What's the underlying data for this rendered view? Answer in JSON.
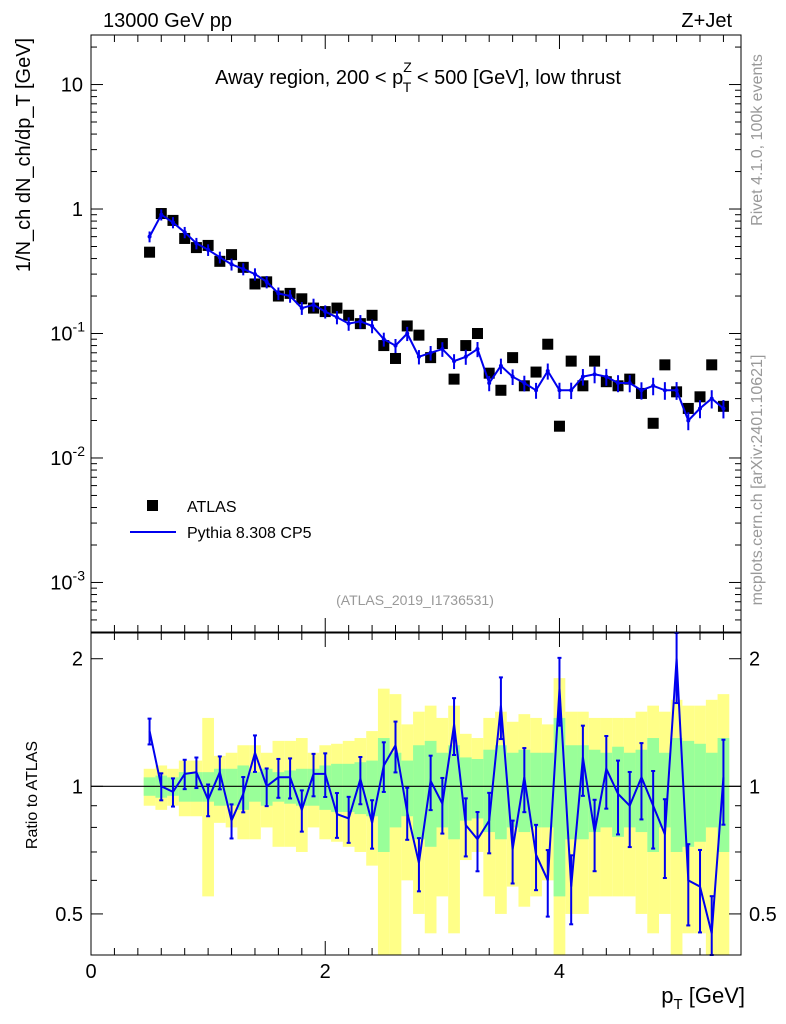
{
  "header": {
    "energy": "13000 GeV pp",
    "process": "Z+Jet",
    "caption": "Away region, 200 < p",
    "caption_sup": "Z",
    "caption_sub": "T",
    "caption_tail": " < 500 [GeV], low thrust",
    "analysis_id": "(ATLAS_2019_I1736531)",
    "side_rivet": "Rivet 4.1.0,  100k events",
    "side_site": "mcplots.cern.ch [arXiv:2401.10621]"
  },
  "axes": {
    "main_ylabel": "1/N_ch dN_ch/dp_T [GeV]",
    "ratio_ylabel": "Ratio to ATLAS",
    "xlabel": "p_T [GeV]"
  },
  "legend": {
    "data_label": "ATLAS",
    "mc_label": "Pythia 8.308 CP5"
  },
  "colors": {
    "mc": "#0000ee",
    "data": "#000000",
    "band_outer": "#ffff88",
    "band_inner": "#99ff99"
  },
  "chart_data": [
    {
      "type": "scatter",
      "title": "Away region, 200 < pT^Z < 500 [GeV], low thrust",
      "xlabel": "p_T [GeV]",
      "ylabel": "1/N_ch dN_ch/dp_T [GeV]",
      "yscale": "log",
      "xlim": [
        0,
        5.55
      ],
      "ylim": [
        0.0004,
        25
      ],
      "x_ticks": [
        "0",
        "2",
        "4"
      ],
      "y_ticks": [
        "10",
        "1",
        "10^-1",
        "10^-2",
        "10^-3"
      ],
      "x": [
        0.5,
        0.6,
        0.7,
        0.8,
        0.9,
        1.0,
        1.1,
        1.2,
        1.3,
        1.4,
        1.5,
        1.6,
        1.7,
        1.8,
        1.9,
        2.0,
        2.1,
        2.2,
        2.3,
        2.4,
        2.5,
        2.6,
        2.7,
        2.8,
        2.9,
        3.0,
        3.1,
        3.2,
        3.3,
        3.4,
        3.5,
        3.6,
        3.7,
        3.8,
        3.9,
        4.0,
        4.1,
        4.2,
        4.3,
        4.4,
        4.5,
        4.6,
        4.7,
        4.8,
        4.9,
        5.0,
        5.1,
        5.2,
        5.3,
        5.4
      ],
      "series": [
        {
          "name": "ATLAS",
          "style": "markers",
          "values": [
            0.45,
            0.92,
            0.81,
            0.58,
            0.49,
            0.51,
            0.38,
            0.43,
            0.34,
            0.25,
            0.26,
            0.2,
            0.21,
            0.19,
            0.16,
            0.15,
            0.16,
            0.14,
            0.12,
            0.14,
            0.08,
            0.063,
            0.115,
            0.097,
            0.064,
            0.083,
            0.043,
            0.08,
            0.1,
            0.048,
            0.035,
            0.064,
            0.038,
            0.049,
            0.082,
            0.018,
            0.06,
            0.038,
            0.06,
            0.041,
            0.038,
            0.043,
            0.033,
            0.019,
            0.056,
            0.034,
            0.025,
            0.031,
            0.056,
            0.026
          ]
        },
        {
          "name": "Pythia 8.308 CP5",
          "style": "line",
          "values": [
            0.6,
            0.9,
            0.78,
            0.65,
            0.53,
            0.47,
            0.41,
            0.36,
            0.33,
            0.3,
            0.26,
            0.21,
            0.2,
            0.16,
            0.17,
            0.15,
            0.135,
            0.12,
            0.125,
            0.115,
            0.09,
            0.08,
            0.1,
            0.065,
            0.07,
            0.075,
            0.06,
            0.065,
            0.075,
            0.04,
            0.055,
            0.045,
            0.04,
            0.035,
            0.05,
            0.035,
            0.035,
            0.045,
            0.047,
            0.045,
            0.04,
            0.04,
            0.035,
            0.038,
            0.035,
            0.035,
            0.02,
            0.025,
            0.03,
            0.025
          ]
        }
      ]
    },
    {
      "type": "line",
      "title": "Ratio to ATLAS",
      "ylabel": "Ratio to ATLAS",
      "xlabel": "p_T [GeV]",
      "xlim": [
        0,
        5.55
      ],
      "ylim": [
        0.4,
        2.3
      ],
      "y_ticks": [
        "2",
        "1",
        "0.5"
      ],
      "x": [
        0.5,
        0.6,
        0.7,
        0.8,
        0.9,
        1.0,
        1.1,
        1.2,
        1.3,
        1.4,
        1.5,
        1.6,
        1.7,
        1.8,
        1.9,
        2.0,
        2.1,
        2.2,
        2.3,
        2.4,
        2.5,
        2.6,
        2.7,
        2.8,
        2.9,
        3.0,
        3.1,
        3.2,
        3.3,
        3.4,
        3.5,
        3.6,
        3.7,
        3.8,
        3.9,
        4.0,
        4.1,
        4.2,
        4.3,
        4.4,
        4.5,
        4.6,
        4.7,
        4.8,
        4.9,
        5.0,
        5.1,
        5.2,
        5.3,
        5.4
      ],
      "series": [
        {
          "name": "Pythia 8.308 CP5 / ATLAS",
          "values": [
            1.35,
            1.0,
            0.97,
            1.07,
            1.08,
            0.93,
            1.08,
            0.83,
            0.96,
            1.2,
            1.0,
            1.05,
            1.05,
            0.88,
            1.07,
            1.07,
            0.86,
            0.84,
            1.04,
            0.82,
            1.12,
            1.25,
            0.87,
            0.66,
            1.03,
            0.91,
            1.4,
            0.81,
            0.75,
            0.83,
            1.55,
            0.71,
            1.05,
            0.69,
            0.6,
            1.7,
            0.58,
            1.17,
            0.78,
            1.1,
            0.96,
            0.9,
            1.05,
            0.9,
            0.77,
            2.0,
            0.6,
            0.58,
            0.45,
            1.05
          ]
        }
      ],
      "band_inner_halfwidth": [
        0.05,
        0.06,
        0.05,
        0.08,
        0.08,
        0.08,
        0.1,
        0.1,
        0.12,
        0.08,
        0.1,
        0.08,
        0.09,
        0.1,
        0.1,
        0.12,
        0.13,
        0.13,
        0.14,
        0.15,
        0.3,
        0.2,
        0.15,
        0.25,
        0.28,
        0.2,
        0.25,
        0.17,
        0.16,
        0.22,
        0.25,
        0.2,
        0.22,
        0.2,
        0.2,
        0.45,
        0.25,
        0.25,
        0.22,
        0.2,
        0.24,
        0.2,
        0.22,
        0.3,
        0.2,
        0.3,
        0.28,
        0.26,
        0.2,
        0.3
      ],
      "band_outer_halfwidth": [
        0.1,
        0.12,
        0.1,
        0.15,
        0.15,
        0.45,
        0.18,
        0.2,
        0.25,
        0.25,
        0.2,
        0.28,
        0.28,
        0.3,
        0.2,
        0.25,
        0.26,
        0.28,
        0.3,
        0.35,
        0.7,
        0.65,
        0.4,
        0.5,
        0.55,
        0.45,
        0.55,
        0.33,
        0.3,
        0.45,
        0.5,
        0.42,
        0.48,
        0.45,
        0.4,
        0.8,
        0.5,
        0.5,
        0.45,
        0.45,
        0.45,
        0.45,
        0.5,
        0.55,
        0.5,
        0.6,
        0.55,
        0.55,
        0.6,
        0.65
      ]
    }
  ]
}
